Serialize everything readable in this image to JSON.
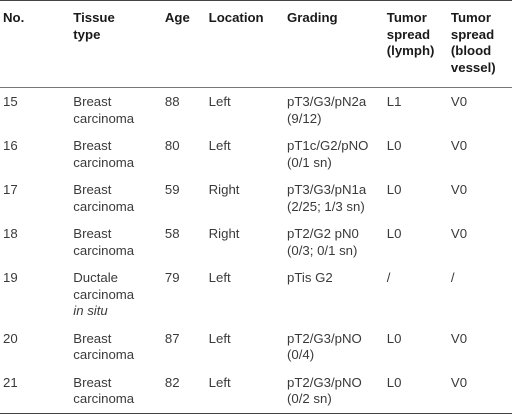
{
  "headers": {
    "no": "No.",
    "tissue": [
      "Tissue",
      "type"
    ],
    "age": "Age",
    "location": "Location",
    "grading": "Grading",
    "lymph": [
      "Tumor",
      "spread",
      "(lymph)"
    ],
    "vessel": [
      "Tumor",
      "spread",
      "(blood",
      "vessel)"
    ]
  },
  "rows": [
    {
      "no": "15",
      "tissue": [
        "Breast",
        "carcinoma"
      ],
      "age": "88",
      "location": "Left",
      "grading": [
        "pT3/G3/pN2a",
        "(9/12)"
      ],
      "lymph": "L1",
      "vessel": "V0"
    },
    {
      "no": "16",
      "tissue": [
        "Breast",
        "carcinoma"
      ],
      "age": "80",
      "location": "Left",
      "grading": [
        "pT1c/G2/pNO",
        "(0/1 sn)"
      ],
      "lymph": "L0",
      "vessel": "V0"
    },
    {
      "no": "17",
      "tissue": [
        "Breast",
        "carcinoma"
      ],
      "age": "59",
      "location": "Right",
      "grading": [
        "pT3/G3/pN1a",
        "(2/25; 1/3 sn)"
      ],
      "lymph": "L0",
      "vessel": "V0"
    },
    {
      "no": "18",
      "tissue": [
        "Breast",
        "carcinoma"
      ],
      "age": "58",
      "location": "Right",
      "grading": [
        "pT2/G2 pN0",
        "(0/3; 0/1 sn)"
      ],
      "lymph": "L0",
      "vessel": "V0"
    },
    {
      "no": "19",
      "tissue": [
        "Ductale",
        "carcinoma",
        "in situ"
      ],
      "age": "79",
      "location": "Left",
      "grading": [
        "pTis G2"
      ],
      "lymph": "/",
      "vessel": "/"
    },
    {
      "no": "20",
      "tissue": [
        "Breast",
        "carcinoma"
      ],
      "age": "87",
      "location": "Left",
      "grading": [
        "pT2/G3/pNO",
        "(0/4)"
      ],
      "lymph": "L0",
      "vessel": "V0"
    },
    {
      "no": "21",
      "tissue": [
        "Breast",
        "carcinoma"
      ],
      "age": "82",
      "location": "Left",
      "grading": [
        "pT2/G3/pNO",
        "(0/2 sn)"
      ],
      "lymph": "L0",
      "vessel": "V0"
    }
  ]
}
